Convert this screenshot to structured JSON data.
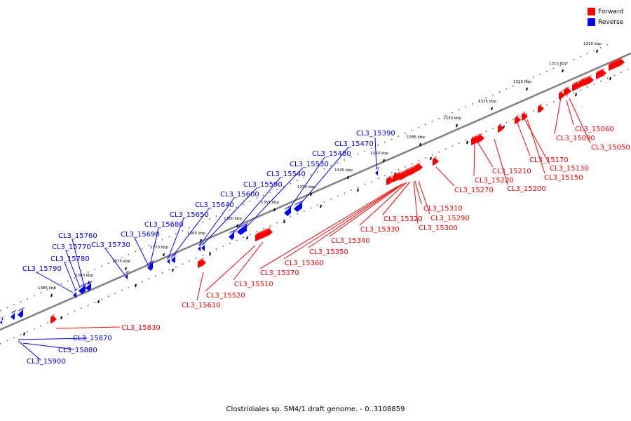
{
  "colors": {
    "forward": "#ff0000",
    "reverse": "#0000ff",
    "backbone": "#808080"
  },
  "legend": {
    "forward": "Forward",
    "reverse": "Reverse"
  },
  "caption": "Clostridiales sp. SM4/1 draft genome. - 0..3108859",
  "scale_labels": [
    "1310 kbp",
    "1315 kbp",
    "1320 kbp",
    "1325 kbp",
    "1330 kbp",
    "1335 kbp",
    "1340 kbp",
    "1345 kbp",
    "1350 kbp",
    "1355 kbp",
    "1360 kbp",
    "1365 kbp",
    "1370 kbp",
    "1375 kbp",
    "1380 kbp",
    "1385 kbp"
  ],
  "genes_reverse": [
    "CL3_15390",
    "CL3_15470",
    "CL3_15480",
    "CL3_15530",
    "CL3_15540",
    "CL3_15590",
    "CL3_15600",
    "CL3_15640",
    "CL3_15650",
    "CL3_15680",
    "CL3_15690",
    "CL3_15730",
    "CL3_15760",
    "CL3_15770",
    "CL3_15780",
    "CL3_15790",
    "CL3_15870",
    "CL3_15880",
    "CL3_15900"
  ],
  "genes_forward": [
    "CL3_15060",
    "CL3_15090",
    "CL3_15050",
    "CL3_15170",
    "CL3_15130",
    "CL3_15210",
    "CL3_15150",
    "CL3_15220",
    "CL3_15200",
    "CL3_15270",
    "CL3_15290",
    "CL3_15310",
    "CL3_15300",
    "CL3_15320",
    "CL3_15330",
    "CL3_15340",
    "CL3_15350",
    "CL3_15360",
    "CL3_15370",
    "CL3_15510",
    "CL3_15520",
    "CL3_15610",
    "CL3_15830"
  ]
}
